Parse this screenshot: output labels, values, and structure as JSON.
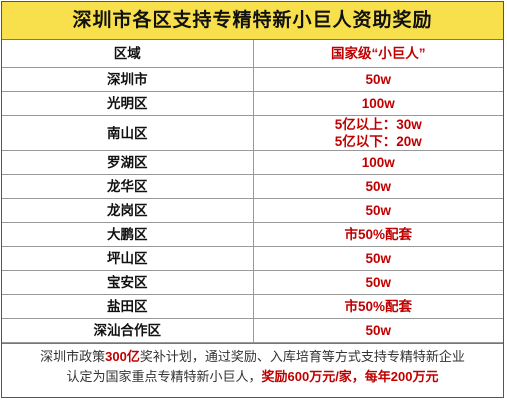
{
  "header": {
    "title": "深圳市各区支持专精特新小巨人资助奖励"
  },
  "table": {
    "columns": [
      "区域",
      "国家级“小巨人”"
    ],
    "rows": [
      [
        "深圳市",
        [
          "50w"
        ]
      ],
      [
        "光明区",
        [
          "100w"
        ]
      ],
      [
        "南山区",
        [
          "5亿以上：30w",
          "5亿以下：20w"
        ]
      ],
      [
        "罗湖区",
        [
          "100w"
        ]
      ],
      [
        "龙华区",
        [
          "50w"
        ]
      ],
      [
        "龙岗区",
        [
          "50w"
        ]
      ],
      [
        "大鹏区",
        [
          "市50%配套"
        ]
      ],
      [
        "坪山区",
        [
          "50w"
        ]
      ],
      [
        "宝安区",
        [
          "50w"
        ]
      ],
      [
        "盐田区",
        [
          "市50%配套"
        ]
      ],
      [
        "深汕合作区",
        [
          "50w"
        ]
      ]
    ]
  },
  "footer": {
    "lines": [
      [
        {
          "text": "深圳市政策",
          "color": "#333333"
        },
        {
          "text": "300亿",
          "color": "#c00000"
        },
        {
          "text": "奖补计划，通过奖励、入库培育等方式支持专精特新企业",
          "color": "#333333"
        }
      ],
      [
        {
          "text": "认定为国家重点专精特新小巨人，",
          "color": "#333333"
        },
        {
          "text": "奖励600万元/家，每年200万元",
          "color": "#c00000"
        }
      ]
    ]
  }
}
